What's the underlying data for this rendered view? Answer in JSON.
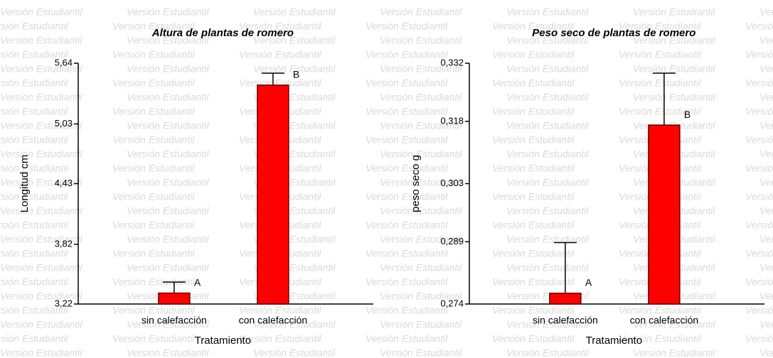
{
  "watermark": "Versión Estudiantil",
  "chart_data": [
    {
      "type": "bar",
      "title": "Altura de plantas de romero",
      "x_label": "Tratamiento",
      "y_label": "Longitud cm",
      "categories": [
        "sin calefacción",
        "con calefacción"
      ],
      "values": [
        3.33,
        5.42
      ],
      "errors": [
        0.11,
        0.12
      ],
      "annotations": [
        "A",
        "B"
      ],
      "color": "#ff0000",
      "ylim": [
        3.22,
        5.64
      ],
      "yticks": [
        {
          "value": 3.22,
          "label": "3,22"
        },
        {
          "value": 3.82,
          "label": "3,82"
        },
        {
          "value": 4.43,
          "label": "4,43"
        },
        {
          "value": 5.03,
          "label": "5,03"
        },
        {
          "value": 5.64,
          "label": "5,64"
        }
      ]
    },
    {
      "type": "bar",
      "title": "Peso seco de plantas de romero",
      "x_label": "Tratamiento",
      "y_label": "peso seco g",
      "categories": [
        "sin calefacción",
        "con calefacción"
      ],
      "values": [
        0.2766,
        0.3171
      ],
      "errors": [
        0.0122,
        0.0125
      ],
      "annotations": [
        "A",
        "B"
      ],
      "color": "#ff0000",
      "ylim": [
        0.274,
        0.332
      ],
      "yticks": [
        {
          "value": 0.274,
          "label": "0,274"
        },
        {
          "value": 0.289,
          "label": "0,289"
        },
        {
          "value": 0.303,
          "label": "0,303"
        },
        {
          "value": 0.318,
          "label": "0,318"
        },
        {
          "value": 0.332,
          "label": "0,332"
        }
      ]
    }
  ]
}
